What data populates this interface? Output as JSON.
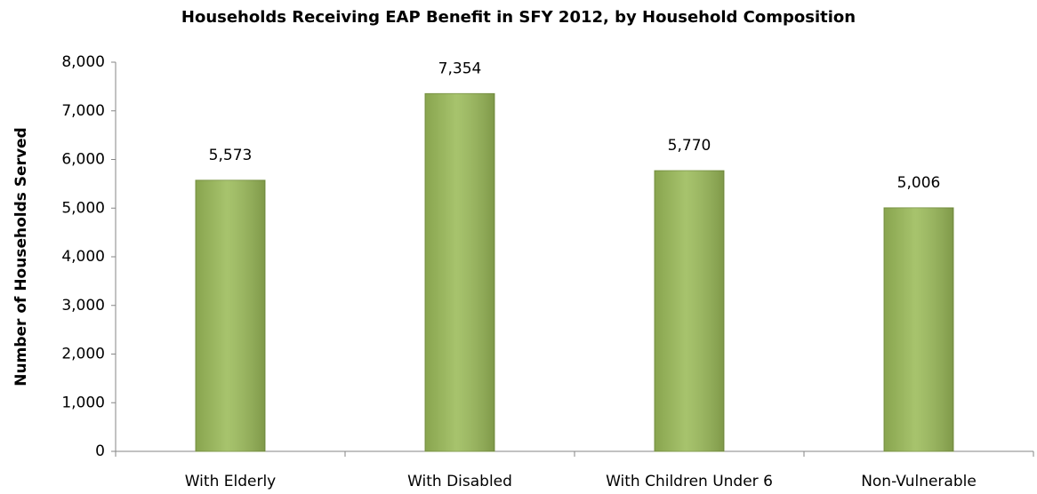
{
  "chart_data": {
    "type": "bar",
    "title": "Households Receiving EAP Benefit in SFY 2012, by Household Composition",
    "y_label": "Number of Households Served",
    "categories": [
      "With Elderly",
      "With Disabled",
      "With Children Under 6",
      "Non-Vulnerable"
    ],
    "values": [
      5573,
      7354,
      5770,
      5006
    ],
    "value_labels": [
      "5,573",
      "7,354",
      "5,770",
      "5,006"
    ],
    "color": "#9bbb59",
    "ylim": [
      0,
      8000
    ],
    "yticks": [
      0,
      {
        "value": 1000,
        "label": "1,000"
      },
      {
        "value": 2000,
        "label": "2,000"
      },
      {
        "value": 3000,
        "label": "3,000"
      },
      {
        "value": 4000,
        "label": "4,000"
      },
      {
        "value": 5000,
        "label": "5,000"
      },
      {
        "value": 6000,
        "label": "6,000"
      },
      {
        "value": 7000,
        "label": "7,000"
      },
      {
        "value": 8000,
        "label": "8,000"
      }
    ],
    "grid": false
  }
}
